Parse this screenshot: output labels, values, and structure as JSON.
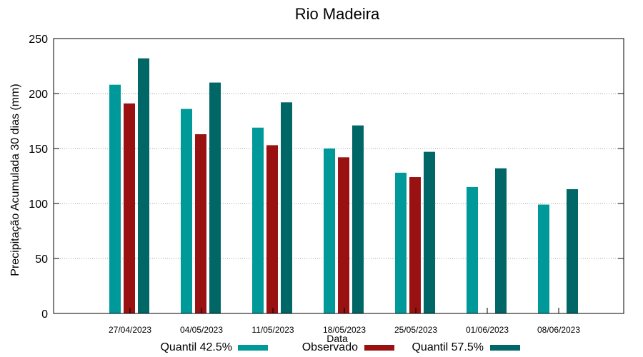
{
  "chart_data": {
    "type": "bar",
    "title": "Rio Madeira",
    "xlabel": "Data",
    "ylabel": "Precipitação Acumulada 30 dias (mm)",
    "ylim": [
      0,
      250
    ],
    "yticks": [
      0,
      50,
      100,
      150,
      200,
      250
    ],
    "grid": true,
    "legend_position": "bottom",
    "categories": [
      "27/04/2023",
      "04/05/2023",
      "11/05/2023",
      "18/05/2023",
      "25/05/2023",
      "01/06/2023",
      "08/06/2023"
    ],
    "series": [
      {
        "name": "Quantil 42.5%",
        "color": "#009999",
        "values": [
          208,
          186,
          169,
          150,
          128,
          115,
          99
        ]
      },
      {
        "name": "Observado",
        "color": "#991111",
        "values": [
          191,
          163,
          153,
          142,
          124,
          null,
          null
        ]
      },
      {
        "name": "Quantil 57.5%",
        "color": "#006666",
        "values": [
          232,
          210,
          192,
          171,
          147,
          132,
          113
        ]
      }
    ]
  }
}
